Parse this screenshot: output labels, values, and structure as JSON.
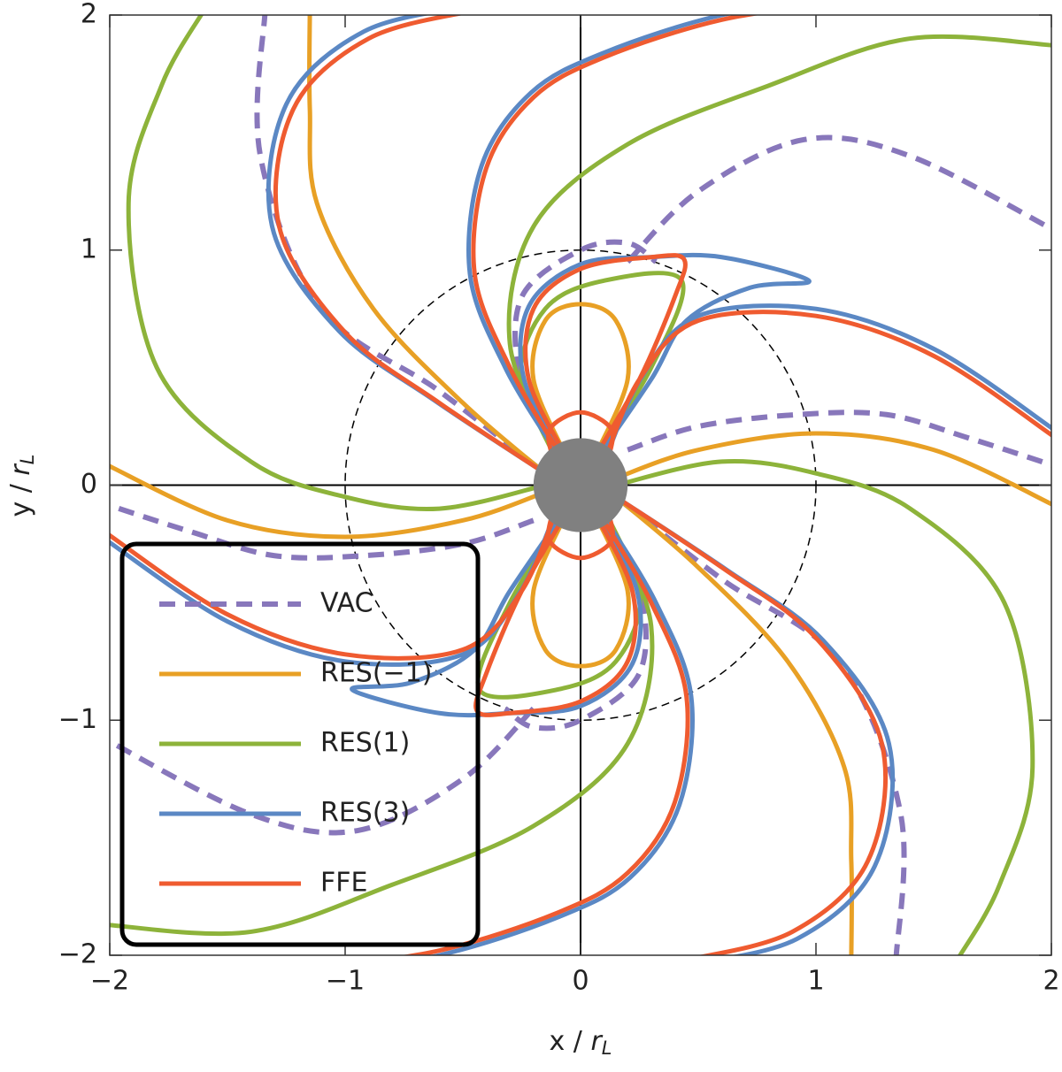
{
  "chart_data": {
    "type": "field-lines",
    "xlabel": {
      "text": "x / ",
      "var": "r",
      "sub": "L"
    },
    "ylabel": {
      "text": "y / ",
      "var": "r",
      "sub": "L"
    },
    "xlim": [
      -2,
      2
    ],
    "ylim": [
      -2,
      2
    ],
    "xticks": [
      {
        "value": -2,
        "label": "−2"
      },
      {
        "value": -1,
        "label": "−1"
      },
      0,
      1,
      2
    ],
    "yticks": [
      {
        "value": -2,
        "label": "−2"
      },
      {
        "value": -1,
        "label": "−1"
      },
      0,
      1,
      2
    ],
    "light_cylinder_radius": 1,
    "star_radius": 0.2,
    "star_color": "#808080",
    "legend": "lower left",
    "series": [
      {
        "name": "VAC",
        "color": "#8877bb",
        "dashed": true,
        "x": [
          -0.05,
          -0.25,
          -0.25,
          0,
          0.2,
          0.32,
          null,
          0.05,
          0.25,
          0.25,
          0,
          -0.2,
          -0.32,
          null,
          -1.34,
          -1.36,
          -1.1,
          -0.6,
          -0.15,
          null,
          1.34,
          1.36,
          1.1,
          0.6,
          0.15,
          null,
          0.2,
          0.5,
          0.92,
          1.3,
          1.65,
          2.02,
          null,
          -0.2,
          -0.5,
          -0.92,
          -1.3,
          -1.65,
          -2.02,
          null,
          0.2,
          0.5,
          0.95,
          1.4,
          2.02,
          null,
          -0.2,
          -0.5,
          -0.95,
          -1.4,
          -2.02
        ],
        "y": [
          0.1,
          0.45,
          0.8,
          1.0,
          1.03,
          0.95,
          null,
          -0.1,
          -0.45,
          -0.8,
          -1.0,
          -1.03,
          -0.95,
          null,
          2.02,
          1.4,
          0.75,
          0.4,
          0.05,
          null,
          -2.02,
          -1.4,
          -0.75,
          -0.4,
          -0.05,
          null,
          0.15,
          0.25,
          0.3,
          0.3,
          0.2,
          0.08,
          null,
          -0.15,
          -0.25,
          -0.3,
          -0.3,
          -0.2,
          -0.08,
          null,
          0.95,
          1.25,
          1.47,
          1.4,
          1.08,
          null,
          -0.95,
          -1.25,
          -1.47,
          -1.4,
          -1.08
        ]
      },
      {
        "name": "RES(−1)",
        "color": "#e8a025",
        "dashed": false,
        "x": [
          -0.05,
          -0.2,
          -0.15,
          0,
          0.15,
          0.2,
          0.05,
          null,
          0.05,
          0.2,
          0.15,
          0,
          -0.15,
          -0.2,
          -0.05,
          null,
          -1.15,
          -1.15,
          -1.12,
          -0.88,
          -0.5,
          -0.15,
          null,
          1.15,
          1.15,
          1.12,
          0.88,
          0.5,
          0.15,
          null,
          -2.02,
          -1.5,
          -1.0,
          -0.5,
          -0.15,
          null,
          2.02,
          1.5,
          1.0,
          0.5,
          0.15
        ],
        "y": [
          0.1,
          0.45,
          0.7,
          0.77,
          0.7,
          0.45,
          0.1,
          null,
          -0.1,
          -0.45,
          -0.7,
          -0.77,
          -0.7,
          -0.45,
          -0.1,
          null,
          2.02,
          1.6,
          1.2,
          0.75,
          0.35,
          0.05,
          null,
          -2.02,
          -1.6,
          -1.2,
          -0.75,
          -0.35,
          -0.05,
          null,
          0.09,
          -0.15,
          -0.22,
          -0.15,
          -0.03,
          null,
          -0.09,
          0.15,
          0.22,
          0.15,
          0.03
        ]
      },
      {
        "name": "RES(1)",
        "color": "#8db33a",
        "dashed": false,
        "x": [
          -0.05,
          -0.25,
          -0.15,
          0.1,
          0.43,
          0.3,
          0.05,
          null,
          0.05,
          0.25,
          0.15,
          -0.1,
          -0.43,
          -0.3,
          -0.05,
          null,
          -0.15,
          -0.6,
          -1.0,
          -1.4,
          -1.8,
          -1.92,
          -1.78,
          -1.6,
          null,
          0.15,
          0.6,
          1.0,
          1.4,
          1.8,
          1.92,
          1.78,
          1.6,
          null,
          -0.1,
          -0.3,
          -0.2,
          0.2,
          0.8,
          1.4,
          2.02,
          null,
          0.1,
          0.3,
          0.2,
          -0.2,
          -0.8,
          -1.4,
          -2.02
        ],
        "y": [
          0.1,
          0.45,
          0.75,
          0.87,
          0.87,
          0.5,
          0.1,
          null,
          -0.1,
          -0.45,
          -0.75,
          -0.87,
          -0.87,
          -0.5,
          -0.1,
          null,
          0,
          -0.1,
          -0.05,
          0.1,
          0.5,
          1.2,
          1.7,
          2.02,
          null,
          0,
          0.1,
          0.05,
          -0.1,
          -0.5,
          -1.2,
          -1.7,
          -2.02,
          null,
          0.1,
          0.6,
          1.1,
          1.45,
          1.7,
          1.9,
          1.87,
          null,
          -0.1,
          -0.6,
          -1.1,
          -1.45,
          -1.7,
          -1.9,
          -1.87
        ]
      },
      {
        "name": "RES(3)",
        "color": "#5b88c4",
        "dashed": false,
        "x": [
          -0.06,
          -0.24,
          -0.22,
          0,
          0.3,
          0.6,
          0.97,
          0.72,
          0.45,
          0.3,
          0.06,
          null,
          0.06,
          0.24,
          0.22,
          0,
          -0.3,
          -0.6,
          -0.97,
          -0.72,
          -0.45,
          -0.3,
          -0.06,
          null,
          -0.15,
          -0.62,
          -1.03,
          -1.31,
          -1.25,
          -0.92,
          -0.46,
          null,
          0.15,
          0.62,
          1.03,
          1.31,
          1.25,
          0.92,
          0.46,
          null,
          -0.09,
          -0.32,
          -0.47,
          -0.42,
          -0.21,
          0.1,
          0.6,
          1.1,
          null,
          0.09,
          0.32,
          0.47,
          0.42,
          0.21,
          -0.1,
          -0.6,
          -1.1,
          null,
          -2.02,
          -1.5,
          -1.0,
          -0.5,
          -0.26,
          -0.1,
          null,
          2.02,
          1.5,
          1.0,
          0.5,
          0.26,
          0.1
        ],
        "y": [
          0.1,
          0.45,
          0.76,
          0.94,
          0.97,
          0.97,
          0.87,
          0.84,
          0.7,
          0.45,
          0.1,
          null,
          -0.1,
          -0.45,
          -0.76,
          -0.94,
          -0.97,
          -0.97,
          -0.87,
          -0.84,
          -0.7,
          -0.45,
          -0.1,
          null,
          0.05,
          0.36,
          0.66,
          1.1,
          1.62,
          1.93,
          2.04,
          null,
          -0.05,
          -0.36,
          -0.66,
          -1.1,
          -1.62,
          -1.93,
          -2.04,
          null,
          0.12,
          0.5,
          0.9,
          1.36,
          1.67,
          1.84,
          2.0,
          2.07,
          null,
          -0.12,
          -0.5,
          -0.9,
          -1.36,
          -1.67,
          -1.84,
          -2.0,
          -2.07,
          null,
          -0.23,
          -0.58,
          -0.75,
          -0.72,
          -0.46,
          -0.1,
          null,
          0.23,
          0.58,
          0.75,
          0.72,
          0.46,
          0.1
        ]
      },
      {
        "name": "FFE",
        "color": "#ef5b30",
        "dashed": false,
        "x": [
          -0.12,
          -0.13,
          0,
          0.13,
          0.12,
          null,
          0.12,
          0.13,
          0,
          -0.13,
          -0.12,
          null,
          -0.05,
          -0.22,
          -0.2,
          0,
          0.3,
          0.44,
          0.4,
          0.25,
          0.05,
          null,
          0.05,
          0.22,
          0.2,
          0,
          -0.3,
          -0.44,
          -0.4,
          -0.25,
          -0.05,
          null,
          -0.15,
          -0.6,
          -1.0,
          -1.28,
          -1.22,
          -0.9,
          -0.45,
          null,
          0.15,
          0.6,
          1.0,
          1.28,
          1.22,
          0.9,
          0.45,
          null,
          -0.08,
          -0.3,
          -0.45,
          -0.4,
          -0.2,
          0.1,
          0.6,
          1.1,
          null,
          0.08,
          0.3,
          0.45,
          0.4,
          0.2,
          -0.1,
          -0.6,
          -1.1,
          null,
          -2.02,
          -1.5,
          -1.0,
          -0.5,
          -0.25,
          -0.1,
          null,
          2.02,
          1.5,
          1.0,
          0.5,
          0.25,
          0.1
        ],
        "y": [
          0.12,
          0.24,
          0.31,
          0.24,
          0.12,
          null,
          -0.12,
          -0.24,
          -0.31,
          -0.24,
          -0.12,
          null,
          0.1,
          0.45,
          0.75,
          0.92,
          0.97,
          0.96,
          0.8,
          0.45,
          0.1,
          null,
          -0.1,
          -0.45,
          -0.75,
          -0.92,
          -0.97,
          -0.96,
          -0.8,
          -0.45,
          -0.1,
          null,
          0.05,
          0.35,
          0.65,
          1.1,
          1.6,
          1.9,
          2.02,
          null,
          -0.05,
          -0.35,
          -0.65,
          -1.1,
          -1.6,
          -1.9,
          -2.02,
          null,
          0.12,
          0.5,
          0.9,
          1.35,
          1.65,
          1.82,
          1.98,
          2.05,
          null,
          -0.12,
          -0.5,
          -0.9,
          -1.35,
          -1.65,
          -1.82,
          -1.98,
          -2.05,
          null,
          -0.2,
          -0.55,
          -0.72,
          -0.7,
          -0.45,
          -0.1,
          null,
          0.2,
          0.55,
          0.72,
          0.7,
          0.45,
          0.1
        ]
      }
    ]
  }
}
